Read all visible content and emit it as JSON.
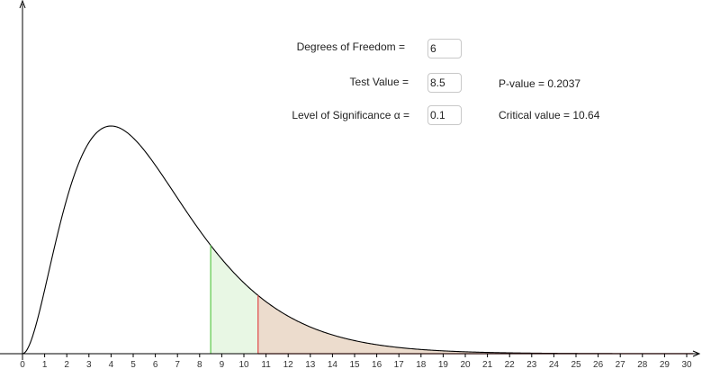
{
  "controls": {
    "df_label": "Degrees of Freedom =",
    "df_value": "6",
    "test_label": "Test Value =",
    "test_value": "8.5",
    "alpha_label": "Level of Significance α =",
    "alpha_value": "0.1",
    "p_value_text": "P-value = 0.2037",
    "critical_value_text": "Critical value = 10.64"
  },
  "chart_data": {
    "type": "area",
    "distribution": "chi-square",
    "df": 6,
    "test_value": 8.5,
    "alpha": 0.1,
    "critical_value": 10.64,
    "p_value": 0.2037,
    "x_ticks": [
      "0",
      "1",
      "2",
      "3",
      "4",
      "5",
      "6",
      "7",
      "8",
      "9",
      "10",
      "11",
      "12",
      "13",
      "14",
      "15",
      "16",
      "17",
      "18",
      "19",
      "20",
      "21",
      "22",
      "23",
      "24",
      "25",
      "26",
      "27",
      "28",
      "29",
      "30"
    ],
    "xlim": [
      0,
      30.3
    ],
    "grid": false,
    "colors": {
      "curve": "#000000",
      "test_line": "#66cc55",
      "test_fill": "#e8f7e4",
      "critical_line": "#e05050",
      "critical_fill": "#ecdccd",
      "axis": "#000000"
    }
  }
}
